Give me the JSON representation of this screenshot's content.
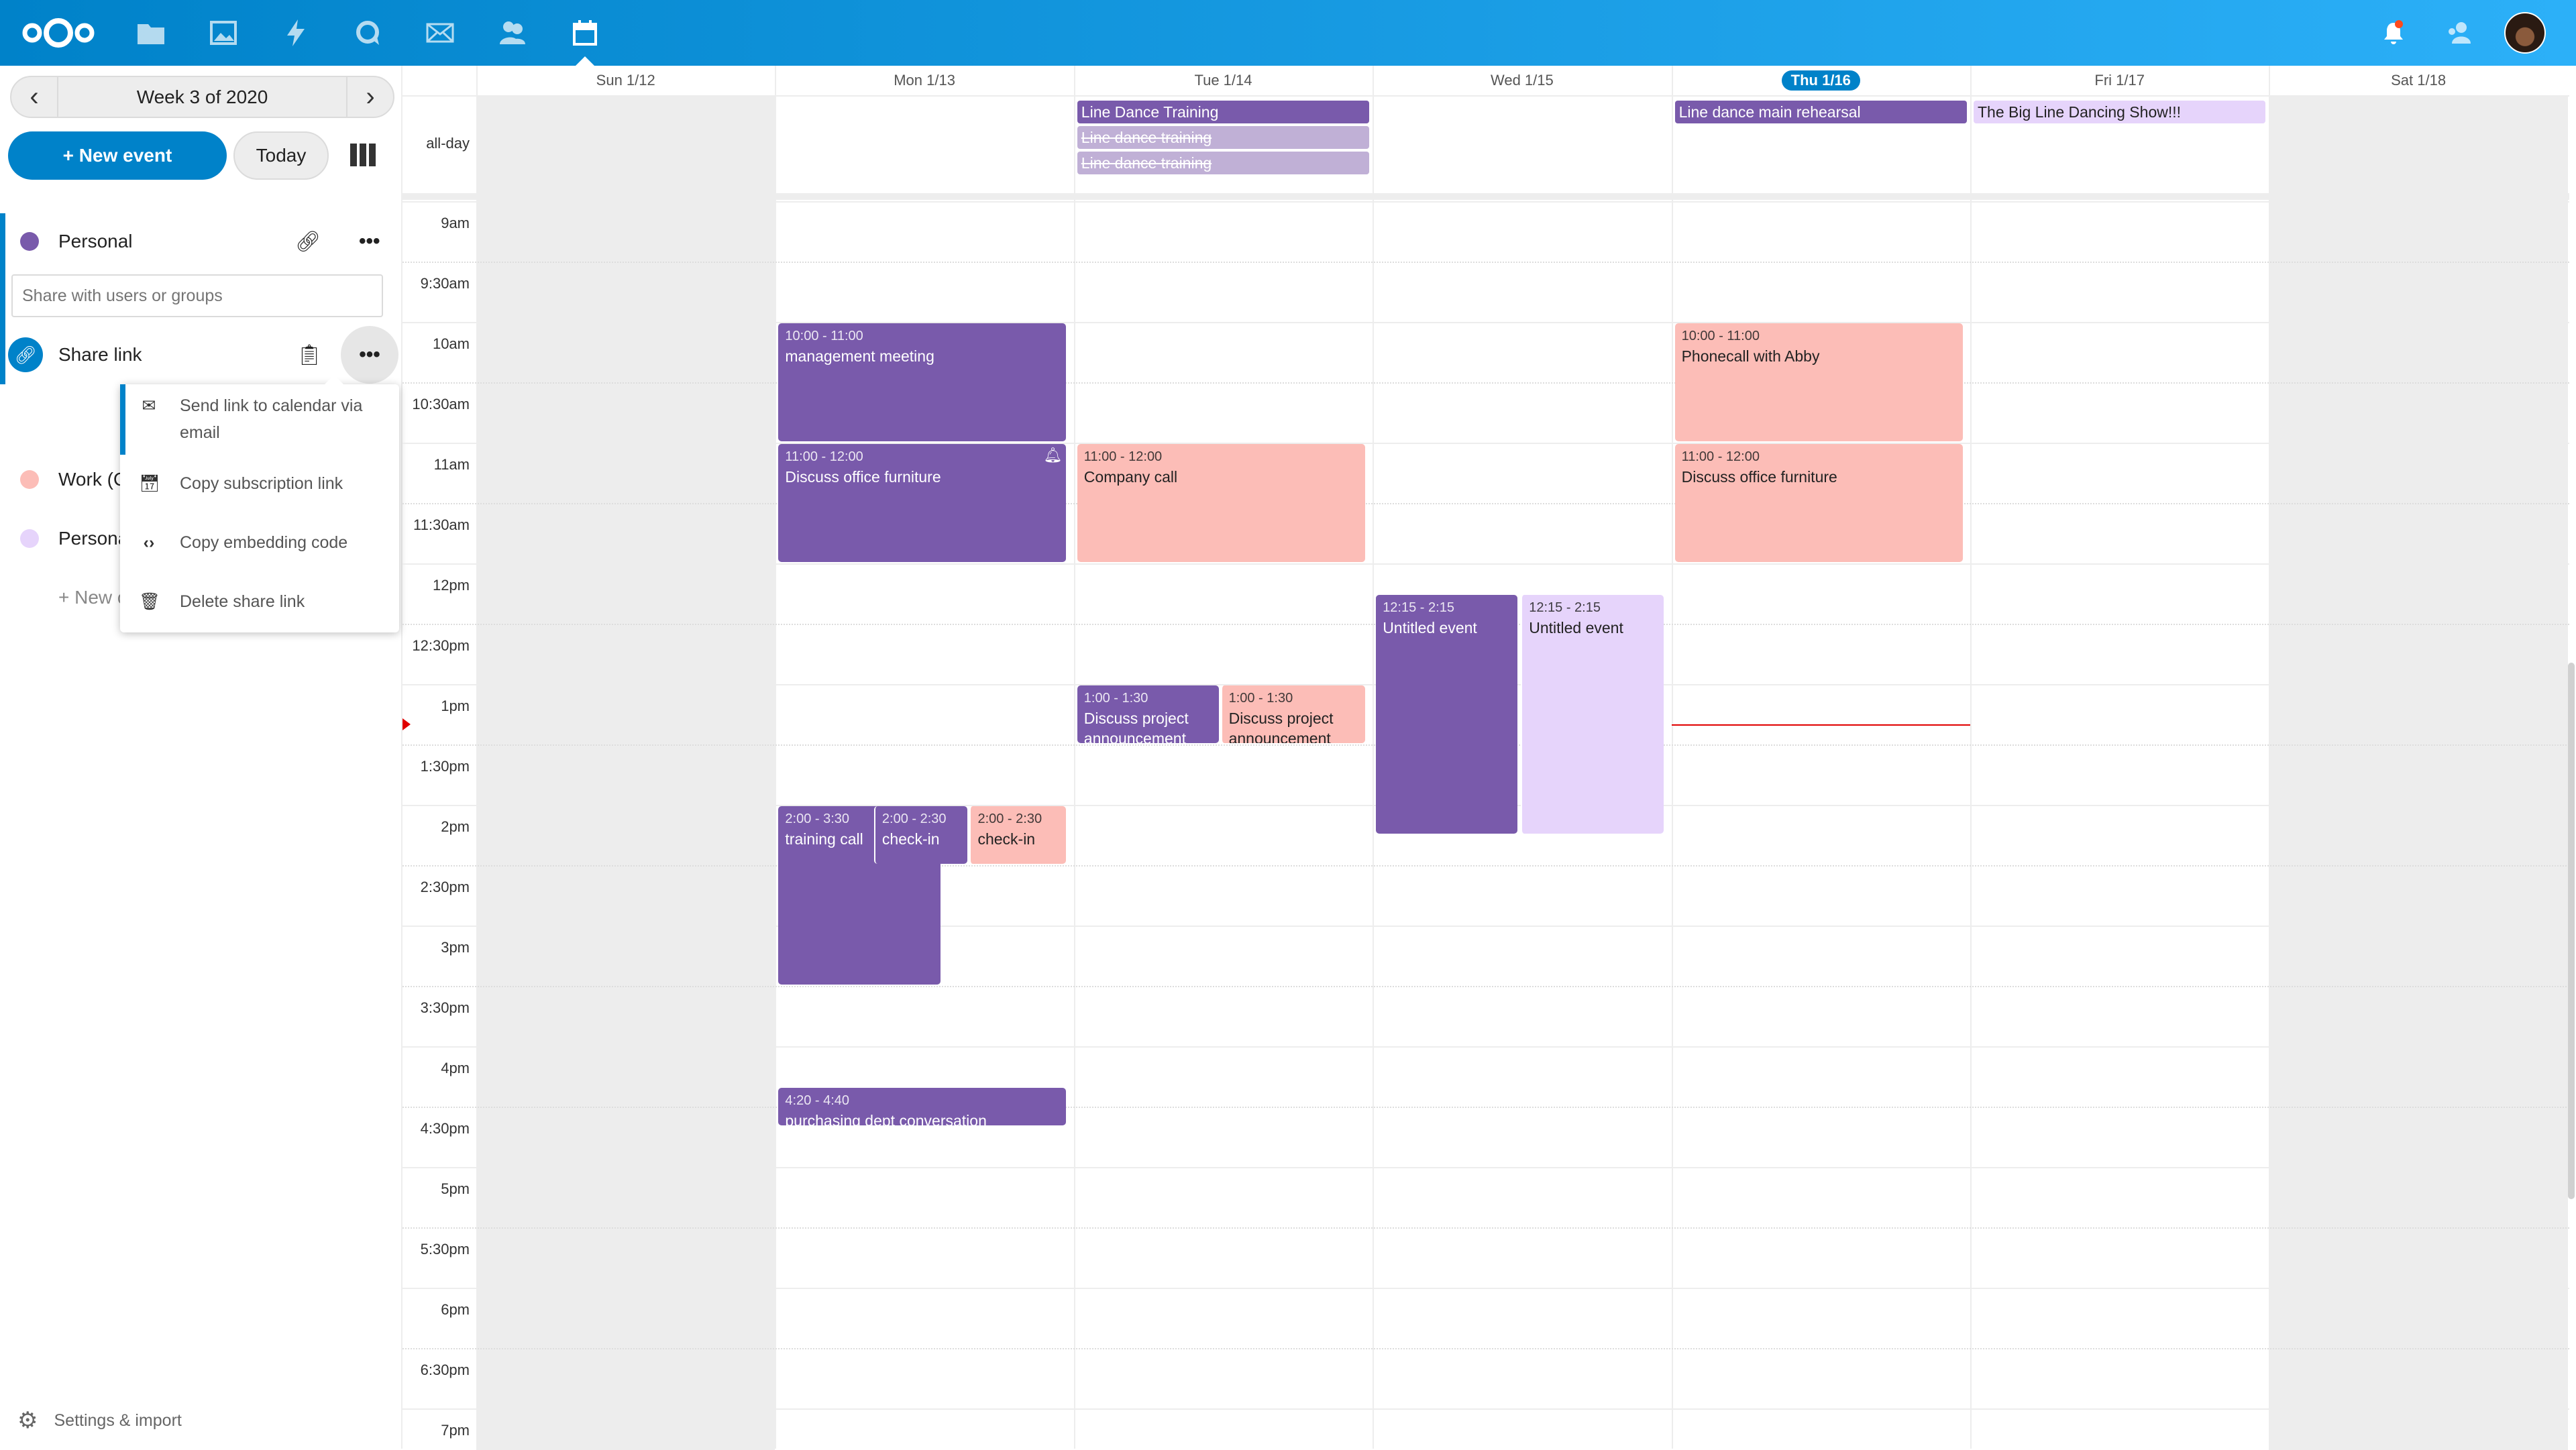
{
  "colors": {
    "accent": "#0082c9",
    "personal": "#795aab",
    "work": "#fcbdb7",
    "personal2": "#e6d4fb",
    "cancelled": "#c0b0d6",
    "weekend": "#ededed",
    "now_line": "#e00000"
  },
  "header": {
    "apps": [
      "nextcloud-logo",
      "files-icon",
      "photos-icon",
      "activity-icon",
      "talk-icon",
      "mail-icon",
      "contacts-icon",
      "calendar-icon"
    ],
    "right": [
      "notifications-icon",
      "contacts-menu-icon",
      "user-avatar"
    ]
  },
  "sidebar": {
    "week_label": "Week 3 of 2020",
    "new_event": "+ New event",
    "today": "Today",
    "calendars": [
      {
        "name": "Personal",
        "color": "#795aab"
      },
      {
        "name": "Work (C",
        "color": "#fcbdb7"
      },
      {
        "name": "Persona",
        "color": "#e6d4fb"
      }
    ],
    "share_placeholder": "Share with users or groups",
    "share_link": "Share link",
    "new_calendar": "+ New c",
    "menu": [
      "Send link to calendar via email",
      "Copy subscription link",
      "Copy embedding code",
      "Delete share link"
    ],
    "settings": "Settings & import"
  },
  "calendar": {
    "days": [
      "Sun 1/12",
      "Mon 1/13",
      "Tue 1/14",
      "Wed 1/15",
      "Thu 1/16",
      "Fri 1/17",
      "Sat 1/18"
    ],
    "today_index": 4,
    "weekend": [
      0,
      6
    ],
    "allday_label": "all-day",
    "hours": [
      "9am",
      "9:30am",
      "10am",
      "10:30am",
      "11am",
      "11:30am",
      "12pm",
      "12:30pm",
      "1pm",
      "1:30pm",
      "2pm",
      "2:30pm",
      "3pm",
      "3:30pm",
      "4pm",
      "4:30pm",
      "5pm",
      "5:30pm",
      "6pm",
      "6:30pm",
      "7pm"
    ],
    "now": "13:20",
    "allday": [
      {
        "day": 2,
        "title": "Line Dance Training",
        "cal": "personal"
      },
      {
        "day": 2,
        "title": "Line dance training",
        "cal": "cancelled",
        "cancelled": true
      },
      {
        "day": 2,
        "title": "Line dance training",
        "cal": "cancelled",
        "cancelled": true
      },
      {
        "day": 4,
        "title": "Line dance main rehearsal",
        "cal": "personal"
      },
      {
        "day": 5,
        "title": "The Big Line Dancing Show!!!",
        "cal": "personal2"
      }
    ],
    "events": [
      {
        "day": 1,
        "start": 10,
        "end": 11,
        "time": "10:00 - 11:00",
        "title": "management meeting",
        "cal": "personal"
      },
      {
        "day": 1,
        "start": 11,
        "end": 12,
        "time": "11:00 - 12:00",
        "title": "Discuss office furniture",
        "cal": "personal",
        "alarm": true
      },
      {
        "day": 1,
        "start": 14,
        "end": 15.5,
        "time": "2:00 - 3:30",
        "title": "training call",
        "cal": "personal"
      },
      {
        "day": 1,
        "start": 14,
        "end": 14.5,
        "time": "2:00 - 2:30",
        "title": "check-in",
        "cal": "personal"
      },
      {
        "day": 1,
        "start": 14,
        "end": 14.5,
        "time": "2:00 - 2:30",
        "title": "check-in",
        "cal": "work"
      },
      {
        "day": 1,
        "start": 16.333,
        "end": 16.667,
        "time": "4:20 - 4:40",
        "title": "purchasing dept conversation",
        "cal": "personal"
      },
      {
        "day": 2,
        "start": 11,
        "end": 12,
        "time": "11:00 - 12:00",
        "title": "Company call",
        "cal": "work"
      },
      {
        "day": 2,
        "start": 13,
        "end": 13.5,
        "time": "1:00 - 1:30",
        "title": "Discuss project announcement",
        "cal": "personal"
      },
      {
        "day": 2,
        "start": 13,
        "end": 13.5,
        "time": "1:00 - 1:30",
        "title": "Discuss project announcement",
        "cal": "work"
      },
      {
        "day": 3,
        "start": 12.25,
        "end": 14.25,
        "time": "12:15 - 2:15",
        "title": "Untitled event",
        "cal": "personal"
      },
      {
        "day": 3,
        "start": 12.25,
        "end": 14.25,
        "time": "12:15 - 2:15",
        "title": "Untitled event",
        "cal": "personal2"
      },
      {
        "day": 4,
        "start": 10,
        "end": 11,
        "time": "10:00 - 11:00",
        "title": "Phonecall with Abby",
        "cal": "work"
      },
      {
        "day": 4,
        "start": 11,
        "end": 12,
        "time": "11:00 - 12:00",
        "title": "Discuss office furniture",
        "cal": "work"
      }
    ]
  }
}
